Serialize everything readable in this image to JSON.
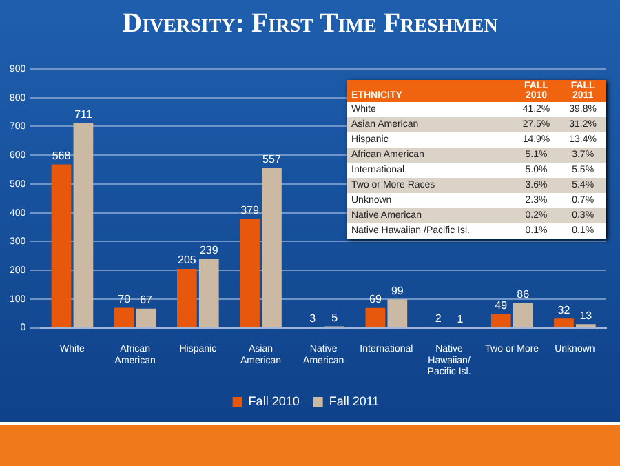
{
  "chart_data": [
    {
      "type": "bar",
      "title": "Diversity: First Time Freshmen",
      "categories": [
        "White",
        "African\nAmerican",
        "Hispanic",
        "Asian\nAmerican",
        "Native\nAmerican",
        "International",
        "Native\nHawaiian/\nPacific Isl.",
        "Two or More",
        "Unknown"
      ],
      "series": [
        {
          "name": "Fall 2010",
          "color": "#e8580c",
          "values": [
            568,
            70,
            205,
            379,
            3,
            69,
            2,
            49,
            32
          ]
        },
        {
          "name": "Fall 2011",
          "color": "#cbb9a4",
          "values": [
            711,
            67,
            239,
            557,
            5,
            99,
            1,
            86,
            13
          ]
        }
      ],
      "ylim": [
        0,
        900
      ],
      "yticks": [
        0,
        100,
        200,
        300,
        400,
        500,
        600,
        700,
        800,
        900
      ],
      "grid": "y",
      "legend": "bottom",
      "data_labels": true
    },
    {
      "type": "other",
      "title": "ETHNICITY",
      "categories": [
        "FALL\n2010",
        "FALL\n2011"
      ],
      "y_categories": [
        "White",
        "Asian American",
        "Hispanic",
        "African American",
        "International",
        "Two or More Races",
        "Unknown",
        "Native American",
        "Native Hawaiian /Pacific Isl."
      ],
      "cell_labels": [
        [
          "41.2%",
          "39.8%"
        ],
        [
          "27.5%",
          "31.2%"
        ],
        [
          "14.9%",
          "13.4%"
        ],
        [
          "5.1%",
          "3.7%"
        ],
        [
          "5.0%",
          "5.5%"
        ],
        [
          "3.6%",
          "5.4%"
        ],
        [
          "2.3%",
          "0.7%"
        ],
        [
          "0.2%",
          "0.3%"
        ],
        [
          "0.1%",
          "0.1%"
        ]
      ]
    }
  ]
}
